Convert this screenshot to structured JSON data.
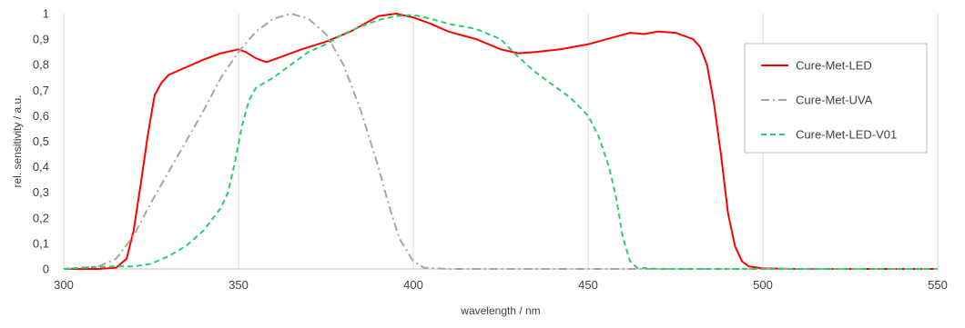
{
  "chart_data": {
    "type": "line",
    "title": "",
    "xlabel": "wavelength / nm",
    "ylabel": "rel. sensitivity / a.u.",
    "xlim": [
      300,
      550
    ],
    "ylim": [
      0,
      1
    ],
    "x_ticks": [
      "300",
      "350",
      "400",
      "450",
      "500",
      "550"
    ],
    "y_ticks": [
      "0",
      "0,1",
      "0,2",
      "0,3",
      "0,4",
      "0,5",
      "0,6",
      "0,7",
      "0,8",
      "0,9",
      "1"
    ],
    "grid": "vertical",
    "legend_position": "right",
    "series": [
      {
        "name": "Cure-Met-LED",
        "color": "#ff0000",
        "style": "solid",
        "points": [
          [
            300,
            0
          ],
          [
            310,
            0
          ],
          [
            315,
            0.005
          ],
          [
            318,
            0.04
          ],
          [
            320,
            0.15
          ],
          [
            322,
            0.33
          ],
          [
            324,
            0.52
          ],
          [
            326,
            0.68
          ],
          [
            328,
            0.73
          ],
          [
            330,
            0.76
          ],
          [
            335,
            0.79
          ],
          [
            340,
            0.82
          ],
          [
            345,
            0.845
          ],
          [
            350,
            0.86
          ],
          [
            352,
            0.85
          ],
          [
            355,
            0.825
          ],
          [
            358,
            0.81
          ],
          [
            362,
            0.83
          ],
          [
            368,
            0.86
          ],
          [
            375,
            0.89
          ],
          [
            382,
            0.93
          ],
          [
            390,
            0.99
          ],
          [
            395,
            1.0
          ],
          [
            400,
            0.985
          ],
          [
            405,
            0.96
          ],
          [
            410,
            0.93
          ],
          [
            418,
            0.9
          ],
          [
            425,
            0.86
          ],
          [
            430,
            0.845
          ],
          [
            435,
            0.85
          ],
          [
            442,
            0.86
          ],
          [
            450,
            0.88
          ],
          [
            458,
            0.91
          ],
          [
            462,
            0.925
          ],
          [
            466,
            0.92
          ],
          [
            470,
            0.93
          ],
          [
            475,
            0.925
          ],
          [
            480,
            0.9
          ],
          [
            482,
            0.87
          ],
          [
            484,
            0.8
          ],
          [
            486,
            0.65
          ],
          [
            488,
            0.45
          ],
          [
            490,
            0.22
          ],
          [
            492,
            0.09
          ],
          [
            494,
            0.03
          ],
          [
            496,
            0.01
          ],
          [
            500,
            0.002
          ],
          [
            510,
            0
          ],
          [
            550,
            0
          ]
        ]
      },
      {
        "name": "Cure-Met-UVA",
        "color": "#a6a6a6",
        "style": "dash-dot",
        "points": [
          [
            300,
            0
          ],
          [
            310,
            0.01
          ],
          [
            315,
            0.04
          ],
          [
            320,
            0.13
          ],
          [
            325,
            0.26
          ],
          [
            330,
            0.38
          ],
          [
            335,
            0.5
          ],
          [
            340,
            0.62
          ],
          [
            345,
            0.75
          ],
          [
            350,
            0.85
          ],
          [
            355,
            0.93
          ],
          [
            360,
            0.98
          ],
          [
            365,
            1.0
          ],
          [
            370,
            0.98
          ],
          [
            375,
            0.92
          ],
          [
            380,
            0.8
          ],
          [
            385,
            0.62
          ],
          [
            390,
            0.4
          ],
          [
            393,
            0.25
          ],
          [
            396,
            0.12
          ],
          [
            400,
            0.03
          ],
          [
            403,
            0.005
          ],
          [
            410,
            0
          ],
          [
            550,
            0
          ]
        ]
      },
      {
        "name": "Cure-Met-LED-V01",
        "color": "#2ecc71",
        "style": "dashed",
        "points": [
          [
            300,
            0
          ],
          [
            305,
            0.005
          ],
          [
            310,
            0.008
          ],
          [
            315,
            0.01
          ],
          [
            320,
            0.01
          ],
          [
            325,
            0.02
          ],
          [
            330,
            0.05
          ],
          [
            335,
            0.09
          ],
          [
            340,
            0.15
          ],
          [
            345,
            0.24
          ],
          [
            347,
            0.3
          ],
          [
            349,
            0.42
          ],
          [
            351,
            0.56
          ],
          [
            353,
            0.66
          ],
          [
            355,
            0.71
          ],
          [
            360,
            0.75
          ],
          [
            365,
            0.8
          ],
          [
            370,
            0.85
          ],
          [
            375,
            0.88
          ],
          [
            380,
            0.92
          ],
          [
            385,
            0.95
          ],
          [
            390,
            0.975
          ],
          [
            395,
            0.99
          ],
          [
            400,
            0.995
          ],
          [
            405,
            0.98
          ],
          [
            410,
            0.96
          ],
          [
            418,
            0.94
          ],
          [
            425,
            0.9
          ],
          [
            430,
            0.83
          ],
          [
            435,
            0.77
          ],
          [
            440,
            0.72
          ],
          [
            445,
            0.67
          ],
          [
            450,
            0.6
          ],
          [
            453,
            0.52
          ],
          [
            456,
            0.4
          ],
          [
            458,
            0.28
          ],
          [
            460,
            0.12
          ],
          [
            462,
            0.03
          ],
          [
            464,
            0.005
          ],
          [
            470,
            0
          ],
          [
            550,
            0
          ]
        ]
      }
    ]
  }
}
